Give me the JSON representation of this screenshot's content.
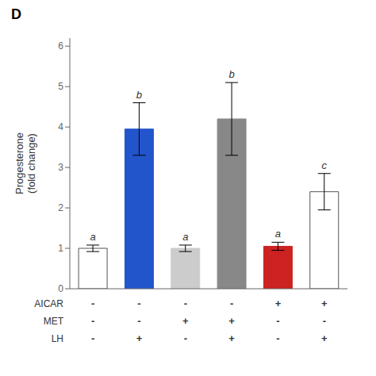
{
  "chart_data": {
    "type": "bar",
    "title": "D",
    "ylabel": "Progesterone\n(fold change)",
    "categories": [
      null,
      null,
      null,
      null,
      null,
      null
    ],
    "values": [
      1.0,
      3.95,
      1.0,
      4.2,
      1.05,
      2.4
    ],
    "errors": [
      0.08,
      0.65,
      0.08,
      0.9,
      0.1,
      0.45
    ],
    "colors": [
      "#ffffff",
      "#2255cc",
      "#cccccc",
      "#888888",
      "#cc2222",
      "#ffffff"
    ],
    "letters": [
      "a",
      "b",
      "a",
      "b",
      "a",
      "c"
    ],
    "rows": [
      {
        "label": "AICAR",
        "values": [
          "-",
          "-",
          "-",
          "-",
          "+",
          "+"
        ]
      },
      {
        "label": "MET",
        "values": [
          "-",
          "-",
          "+",
          "+",
          "-",
          "-"
        ]
      },
      {
        "label": "LH",
        "values": [
          "-",
          "+",
          "-",
          "+",
          "-",
          "+"
        ]
      }
    ],
    "ylim": [
      0,
      6.2
    ],
    "yticks": [
      0,
      1,
      2,
      3,
      4,
      5,
      6
    ],
    "grid": false,
    "tick_labels": "y"
  }
}
